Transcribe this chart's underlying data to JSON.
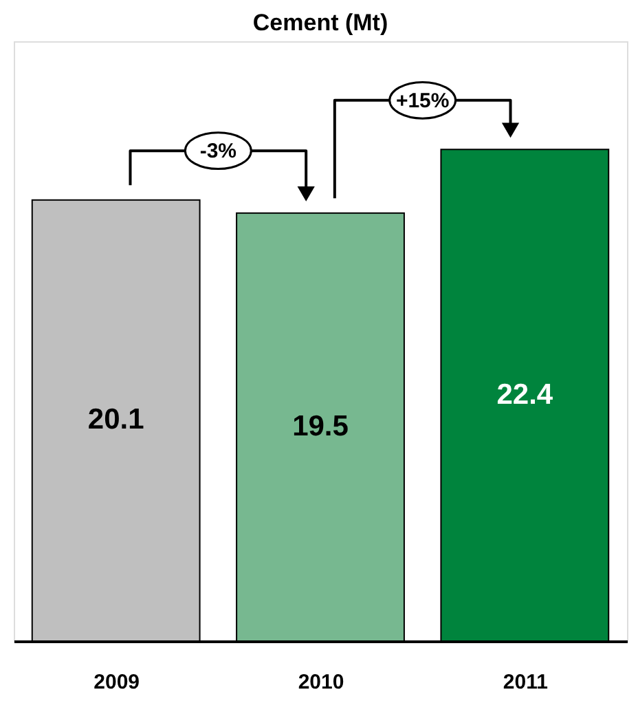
{
  "chart_data": {
    "type": "bar",
    "title": "Cement (Mt)",
    "categories": [
      "2009",
      "2010",
      "2011"
    ],
    "values": [
      20.1,
      19.5,
      22.4
    ],
    "colors": [
      "#bfbfbf",
      "#77b890",
      "#00843d"
    ],
    "data_labels": true,
    "tick_labels": "x",
    "grid": false,
    "annotations": [
      "-3%",
      "+15%"
    ]
  }
}
